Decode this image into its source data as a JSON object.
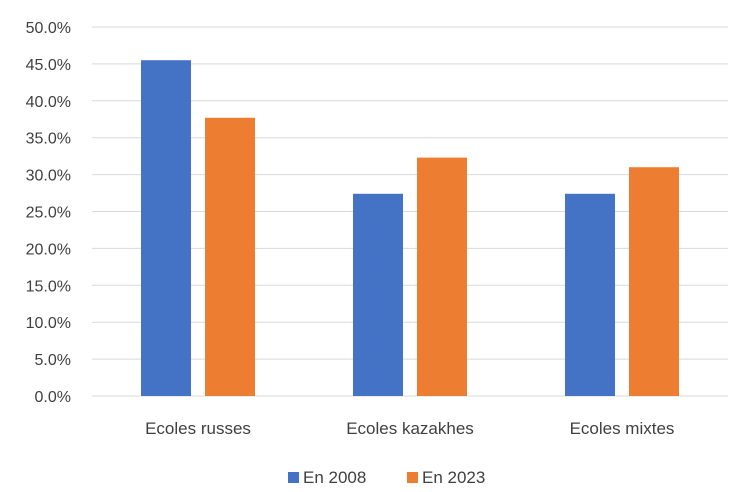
{
  "chart_data": {
    "type": "bar",
    "categories": [
      "Ecoles russes",
      "Ecoles kazakhes",
      "Ecoles mixtes"
    ],
    "series": [
      {
        "name": "En 2008",
        "values": [
          45.5,
          27.4,
          27.4
        ],
        "color": "#4472C4"
      },
      {
        "name": "En 2023",
        "values": [
          37.7,
          32.3,
          31.0
        ],
        "color": "#ED7D31"
      }
    ],
    "y_ticks": [
      "0.0%",
      "5.0%",
      "10.0%",
      "15.0%",
      "20.0%",
      "25.0%",
      "30.0%",
      "35.0%",
      "40.0%",
      "45.0%",
      "50.0%"
    ],
    "ylim": [
      0,
      50
    ],
    "grid": true,
    "legend_position": "bottom",
    "gridline_color": "#D9D9D9",
    "text_color": "#404040"
  }
}
